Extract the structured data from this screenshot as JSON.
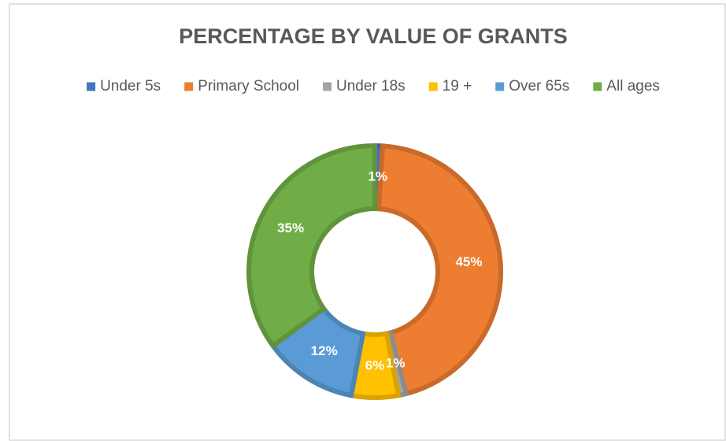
{
  "chart_data": {
    "type": "donut",
    "title": "PERCENTAGE BY VALUE OF GRANTS",
    "categories": [
      "Under 5s",
      "Primary School",
      "Under 18s",
      "19 +",
      "Over 65s",
      "All ages"
    ],
    "values": [
      1,
      45,
      1,
      6,
      12,
      35
    ],
    "value_labels": [
      "1%",
      "45%",
      "1%",
      "6%",
      "12%",
      "35%"
    ],
    "colors": [
      "#4472c4",
      "#ed7d31",
      "#a5a5a5",
      "#ffc000",
      "#5b9bd5",
      "#70ad47"
    ],
    "legend": "top"
  }
}
